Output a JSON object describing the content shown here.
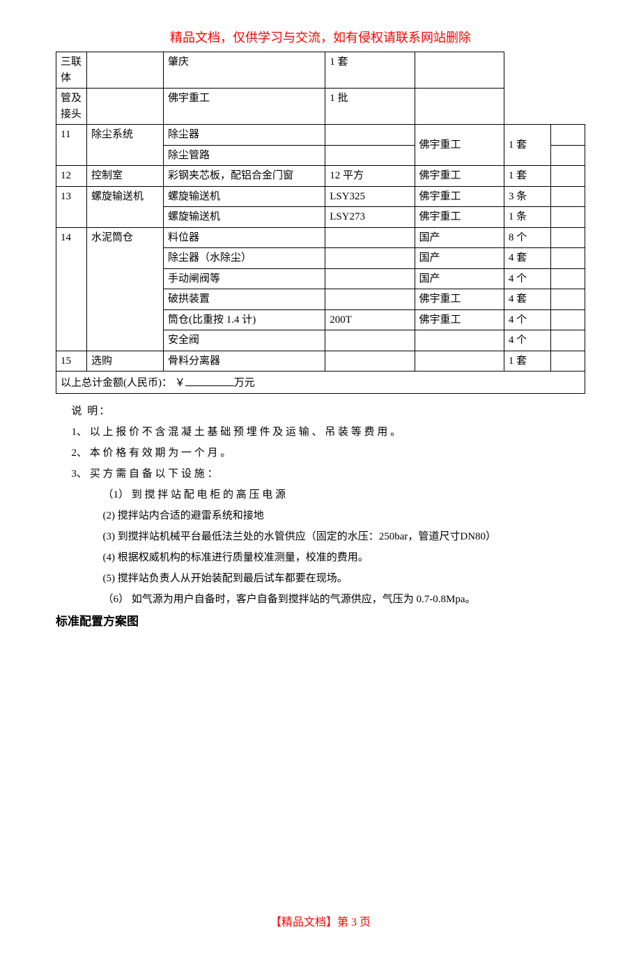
{
  "header": "精品文档，仅供学习与交流，如有侵权请联系网站删除",
  "footer": "【精品文档】第 3 页",
  "table": {
    "columns_widths": [
      "36px",
      "90px",
      "190px",
      "105px",
      "105px",
      "55px",
      "40px"
    ],
    "rows": [
      {
        "no": "",
        "sys": "",
        "item": "三联体",
        "spec": "",
        "mfr": "肇庆",
        "qty": "1 套",
        "rem": "",
        "merge_above_no": true,
        "merge_above_sys": true
      },
      {
        "no": "",
        "sys": "",
        "item": "管及接头",
        "spec": "",
        "mfr": "佛宇重工",
        "qty": "1 批",
        "rem": "",
        "merge_above_no": true,
        "merge_above_sys": true
      },
      {
        "no": "11",
        "sys": "除尘系统",
        "item": "除尘器",
        "spec": "",
        "mfr": "佛宇重工",
        "qty": "1 套",
        "rem": "",
        "mfr_rowspan": 2,
        "qty_rowspan": 2
      },
      {
        "no": "",
        "sys": "",
        "item": "除尘管路",
        "spec": "",
        "rem": "",
        "merge_above_no": true,
        "merge_above_sys": true
      },
      {
        "no": "12",
        "sys": "控制室",
        "item": "彩钢夹芯板，配铝合金门窗",
        "spec": "12 平方",
        "mfr": "佛宇重工",
        "qty": "1 套",
        "rem": ""
      },
      {
        "no": "13",
        "sys": "螺旋输送机",
        "item": "螺旋输送机",
        "spec": "LSY325",
        "mfr": "佛宇重工",
        "qty": "3 条",
        "rem": ""
      },
      {
        "no": "",
        "sys": "",
        "item": "螺旋输送机",
        "spec": "LSY273",
        "mfr": "佛宇重工",
        "qty": "1 条",
        "rem": "",
        "merge_above_no": true,
        "merge_above_sys": true
      },
      {
        "no": "14",
        "sys": "水泥筒仓",
        "item": "料位器",
        "spec": "",
        "mfr": "国产",
        "qty": "8 个",
        "rem": ""
      },
      {
        "no": "",
        "sys": "",
        "item": "除尘器（水除尘）",
        "spec": "",
        "mfr": "国产",
        "qty": "4 套",
        "rem": "",
        "merge_above_no": true,
        "merge_above_sys": true
      },
      {
        "no": "",
        "sys": "",
        "item": "手动闸阀等",
        "spec": "",
        "mfr": "国产",
        "qty": "4 个",
        "rem": "",
        "merge_above_no": true,
        "merge_above_sys": true
      },
      {
        "no": "",
        "sys": "",
        "item": "破拱装置",
        "spec": "",
        "mfr": "佛宇重工",
        "qty": "4 套",
        "rem": "",
        "merge_above_no": true,
        "merge_above_sys": true
      },
      {
        "no": "",
        "sys": "",
        "item": "筒仓(比重按 1.4 计)",
        "spec": "200T",
        "mfr": "佛宇重工",
        "qty": "4 个",
        "rem": "",
        "merge_above_no": true,
        "merge_above_sys": true
      },
      {
        "no": "",
        "sys": "",
        "item": "安全阀",
        "spec": "",
        "mfr": "",
        "qty": "4 个",
        "rem": "",
        "merge_above_no": true,
        "merge_above_sys": true
      },
      {
        "no": "15",
        "sys": "选购",
        "item": "骨料分离器",
        "spec": "",
        "mfr": "",
        "qty": "1 套",
        "rem": ""
      }
    ],
    "total_prefix": "以上总计金额(人民币)：  ￥",
    "total_suffix": "万元"
  },
  "notes": {
    "title": "说 明：",
    "items": [
      "1、 以 上 报 价 不 含 混 凝 土 基 础 预 埋 件 及 运 输 、 吊 装 等 费 用 。",
      "2、 本 价 格 有 效 期 为 一 个 月 。",
      "3、 买 方 需 自 备 以 下 设 施 ："
    ],
    "subitems": [
      "（1） 到 搅 拌 站 配 电 柜 的 高 压 电 源",
      "(2)  搅拌站内合适的避雷系统和接地",
      "(3)  到搅拌站机械平台最低法兰处的水管供应（固定的水压：250bar，管道尺寸DN80）",
      "(4)  根据权威机构的标准进行质量校准测量，校准的费用。",
      "(5)  搅拌站负责人从开始装配到最后试车都要在现场。",
      "（6） 如气源为用户自备时，客户自备到搅拌站的气源供应，气压为 0.7-0.8Mpa。"
    ]
  },
  "section_title": "标准配置方案图"
}
